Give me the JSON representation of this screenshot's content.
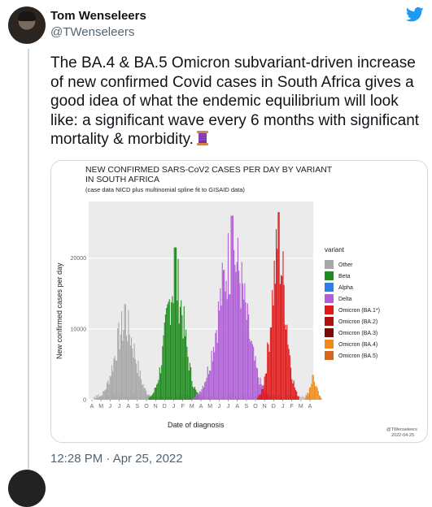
{
  "tweet": {
    "author_name": "Tom Wenseleers",
    "author_handle": "@TWenseleers",
    "text": "The BA.4 & BA.5 Omicron subvariant-driven increase of new confirmed Covid cases in South Africa gives a good idea of what the endemic equilibrium will look like: a significant wave every 6 months with significant mortality & morbidity.",
    "text_emoji": "spool-of-thread-icon",
    "timestamp": "12:28 PM · Apr 25, 2022",
    "brand_color": "#1d9bf0"
  },
  "chart_data": {
    "type": "area",
    "title_line1": "NEW CONFIRMED SARS-CoV2 CASES PER DAY BY VARIANT",
    "title_line2": "IN SOUTH AFRICA",
    "subtitle": "(case data NICD plus multinomial spline fit to GISAID data)",
    "xlabel": "Date of diagnosis",
    "ylabel": "New confirmed cases per day",
    "y_ticks": [
      "0",
      "10000",
      "20000"
    ],
    "ylim": [
      0,
      28000
    ],
    "x_ticks": [
      "A",
      "M",
      "J",
      "J",
      "A",
      "S",
      "O",
      "N",
      "D",
      "J",
      "F",
      "M",
      "A",
      "M",
      "J",
      "J",
      "A",
      "S",
      "O",
      "N",
      "D",
      "J",
      "F",
      "M",
      "A"
    ],
    "grid": true,
    "legend_title": "variant",
    "legend_placement": "right",
    "series": [
      {
        "name": "Other",
        "color": "#a8a8a8"
      },
      {
        "name": "Beta",
        "color": "#1e8c1e"
      },
      {
        "name": "Alpha",
        "color": "#2f7fe0"
      },
      {
        "name": "Delta",
        "color": "#b05fd6"
      },
      {
        "name": "Omicron (BA.1*)",
        "color": "#e01a1a"
      },
      {
        "name": "Omicron (BA.2)",
        "color": "#b0120f"
      },
      {
        "name": "Omicron (BA.3)",
        "color": "#7a0a0a"
      },
      {
        "name": "Omicron (BA.4)",
        "color": "#f08a1a"
      },
      {
        "name": "Omicron (BA.5)",
        "color": "#d2691e"
      }
    ],
    "waves": [
      {
        "variant": "Other",
        "peak_tick_index": 3.6,
        "peak_value": 13500,
        "half_width": 1.1
      },
      {
        "variant": "Beta",
        "peak_tick_index": 9.1,
        "peak_value": 21500,
        "half_width": 1.0
      },
      {
        "variant": "Delta",
        "peak_tick_index": 15.4,
        "peak_value": 26000,
        "half_width": 1.5
      },
      {
        "variant": "Omicron (BA.1*)",
        "peak_tick_index": 20.5,
        "peak_value": 26500,
        "half_width": 0.8
      },
      {
        "variant": "Omicron (BA.4)",
        "peak_tick_index": 24.3,
        "peak_value": 3500,
        "half_width": 0.4
      }
    ],
    "credit_line1": "@TWenseleers",
    "credit_line2": "2022-04-25"
  }
}
